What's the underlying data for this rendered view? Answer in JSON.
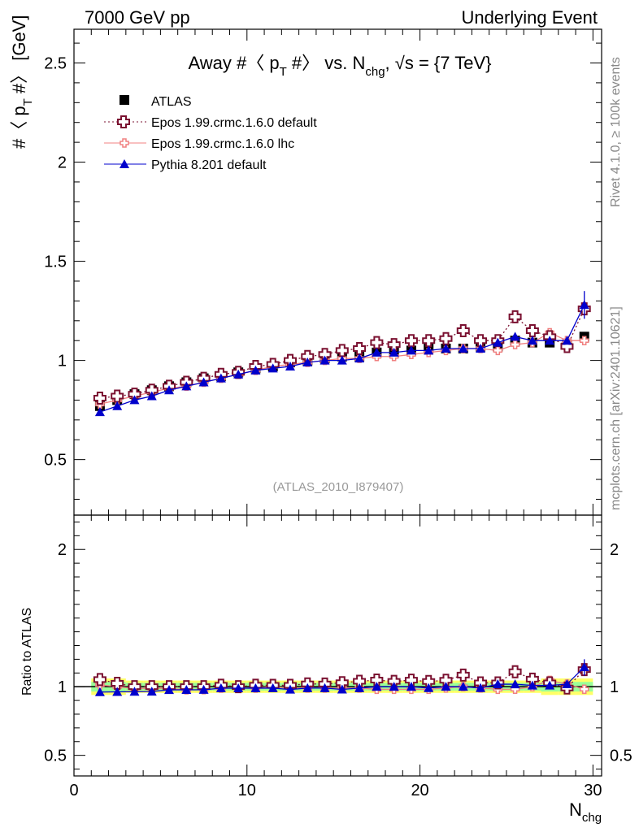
{
  "header": {
    "left": "7000 GeV pp",
    "right": "Underlying Event"
  },
  "side": {
    "top": "Rivet 4.1.0, ≥ 100k events",
    "bottom": "mcplots.cern.ch [arXiv:2401.10621]"
  },
  "colors": {
    "atlas": "#000000",
    "epos_default": "#7a1030",
    "epos_lhc": "#f08080",
    "pythia": "#0000cc",
    "band_inner": "#99ff99",
    "band_outer": "#ffff66"
  },
  "chart_data": {
    "type": "line",
    "title": "Away #〈 p_T #〉 vs. N_chg, √s = {7 TeV}",
    "title_parts": {
      "main": "Away #〈 p",
      "sub1": "T",
      "mid": " #〉 vs. N",
      "sub2": "chg",
      "tail": ", √s = {7 TeV}"
    },
    "ylabel_parts": {
      "main": "#〈 p",
      "sub": "T",
      "tail": " #〉 [GeV]"
    },
    "xlabel_parts": {
      "main": "N",
      "sub": "chg"
    },
    "ratio_ylabel": "Ratio to ATLAS",
    "watermark": "(ATLAS_2010_I879407)",
    "xlim": [
      0,
      30.5
    ],
    "ylim": [
      0.22,
      2.67
    ],
    "ratio_ylim": [
      0.35,
      2.25
    ],
    "x_ticks": [
      0,
      10,
      20,
      30
    ],
    "x_tick_labels": [
      "0",
      "10",
      "20",
      "30"
    ],
    "y_ticks": [
      0.5,
      1,
      1.5,
      2,
      2.5
    ],
    "y_tick_labels": [
      "0.5",
      "1",
      "1.5",
      "2",
      "2.5"
    ],
    "ratio_y_ticks": [
      0.5,
      1,
      2
    ],
    "ratio_y_tick_labels": [
      "0.5",
      "1",
      "2"
    ],
    "x": [
      1.5,
      2.5,
      3.5,
      4.5,
      5.5,
      6.5,
      7.5,
      8.5,
      9.5,
      10.5,
      11.5,
      12.5,
      13.5,
      14.5,
      15.5,
      16.5,
      17.5,
      18.5,
      19.5,
      20.5,
      21.5,
      22.5,
      23.5,
      24.5,
      25.5,
      26.5,
      27.5,
      28.5,
      29.5
    ],
    "series": [
      {
        "name": "ATLAS",
        "key": "atlas",
        "marker": "square",
        "values": [
          0.77,
          0.8,
          0.83,
          0.85,
          0.87,
          0.89,
          0.91,
          0.92,
          0.94,
          0.96,
          0.97,
          0.99,
          1.0,
          1.01,
          1.02,
          1.02,
          1.04,
          1.04,
          1.05,
          1.06,
          1.06,
          1.06,
          1.07,
          1.07,
          1.1,
          1.09,
          1.09,
          1.08,
          1.12
        ]
      },
      {
        "name": "Epos 1.99.crmc.1.6.0 default",
        "key": "epos_default",
        "marker": "open-cross",
        "style": "dotted",
        "values": [
          0.81,
          0.82,
          0.83,
          0.85,
          0.87,
          0.89,
          0.91,
          0.93,
          0.94,
          0.97,
          0.98,
          1.0,
          1.02,
          1.03,
          1.05,
          1.06,
          1.09,
          1.08,
          1.1,
          1.1,
          1.11,
          1.15,
          1.1,
          1.1,
          1.22,
          1.15,
          1.12,
          1.07,
          1.26
        ]
      },
      {
        "name": "Epos 1.99.crmc.1.6.0 lhc",
        "key": "epos_lhc",
        "marker": "open-cross-small",
        "style": "solid",
        "values": [
          0.78,
          0.8,
          0.82,
          0.84,
          0.86,
          0.87,
          0.89,
          0.91,
          0.93,
          0.95,
          0.97,
          0.98,
          0.99,
          1.0,
          1.01,
          1.01,
          1.02,
          1.02,
          1.03,
          1.04,
          1.05,
          1.06,
          1.06,
          1.05,
          1.08,
          1.09,
          1.14,
          1.1,
          1.1
        ]
      },
      {
        "name": "Pythia 8.201 default",
        "key": "pythia",
        "marker": "triangle",
        "style": "solid",
        "values": [
          0.74,
          0.77,
          0.8,
          0.82,
          0.85,
          0.87,
          0.89,
          0.91,
          0.93,
          0.95,
          0.96,
          0.97,
          0.99,
          1.0,
          1.0,
          1.01,
          1.04,
          1.04,
          1.05,
          1.05,
          1.06,
          1.06,
          1.06,
          1.09,
          1.12,
          1.1,
          1.1,
          1.1,
          1.28
        ]
      }
    ]
  }
}
